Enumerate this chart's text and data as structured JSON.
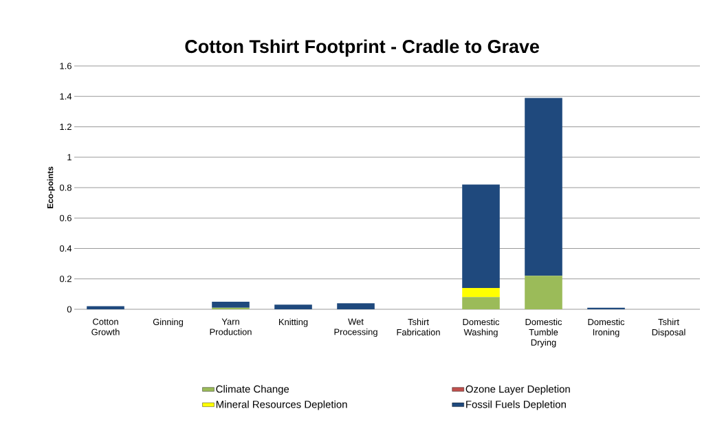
{
  "chart_data": {
    "type": "bar",
    "title": "Cotton Tshirt Footprint - Cradle to Grave",
    "ylabel": "Eco-points",
    "stacked": true,
    "categories": [
      "Cotton Growth",
      "Ginning",
      "Yarn Production",
      "Knitting",
      "Wet Processing",
      "Tshirt Fabrication",
      "Domestic Washing",
      "Domestic Tumble Drying",
      "Domestic Ironing",
      "Tshirt Disposal"
    ],
    "series": [
      {
        "name": "Climate Change",
        "color": "#9bbb59",
        "values": [
          0,
          0,
          0.01,
          0,
          0,
          0,
          0.08,
          0.22,
          0,
          0
        ]
      },
      {
        "name": "Ozone Layer Depletion",
        "color": "#c0504d",
        "values": [
          0,
          0,
          0,
          0,
          0,
          0,
          0,
          0,
          0,
          0
        ]
      },
      {
        "name": "Mineral Resources Depletion",
        "color": "#ffff00",
        "values": [
          0,
          0,
          0,
          0,
          0,
          0,
          0.06,
          0,
          0,
          0
        ]
      },
      {
        "name": "Fossil Fuels Depletion",
        "color": "#1f497d",
        "values": [
          0.02,
          0,
          0.04,
          0.03,
          0.04,
          0,
          0.68,
          1.17,
          0.01,
          0
        ]
      }
    ],
    "ylim": [
      0,
      1.6
    ],
    "yticks": [
      0,
      0.2,
      0.4,
      0.6,
      0.8,
      1,
      1.2,
      1.4,
      1.6
    ],
    "grid": "y",
    "legend": "bottom"
  }
}
